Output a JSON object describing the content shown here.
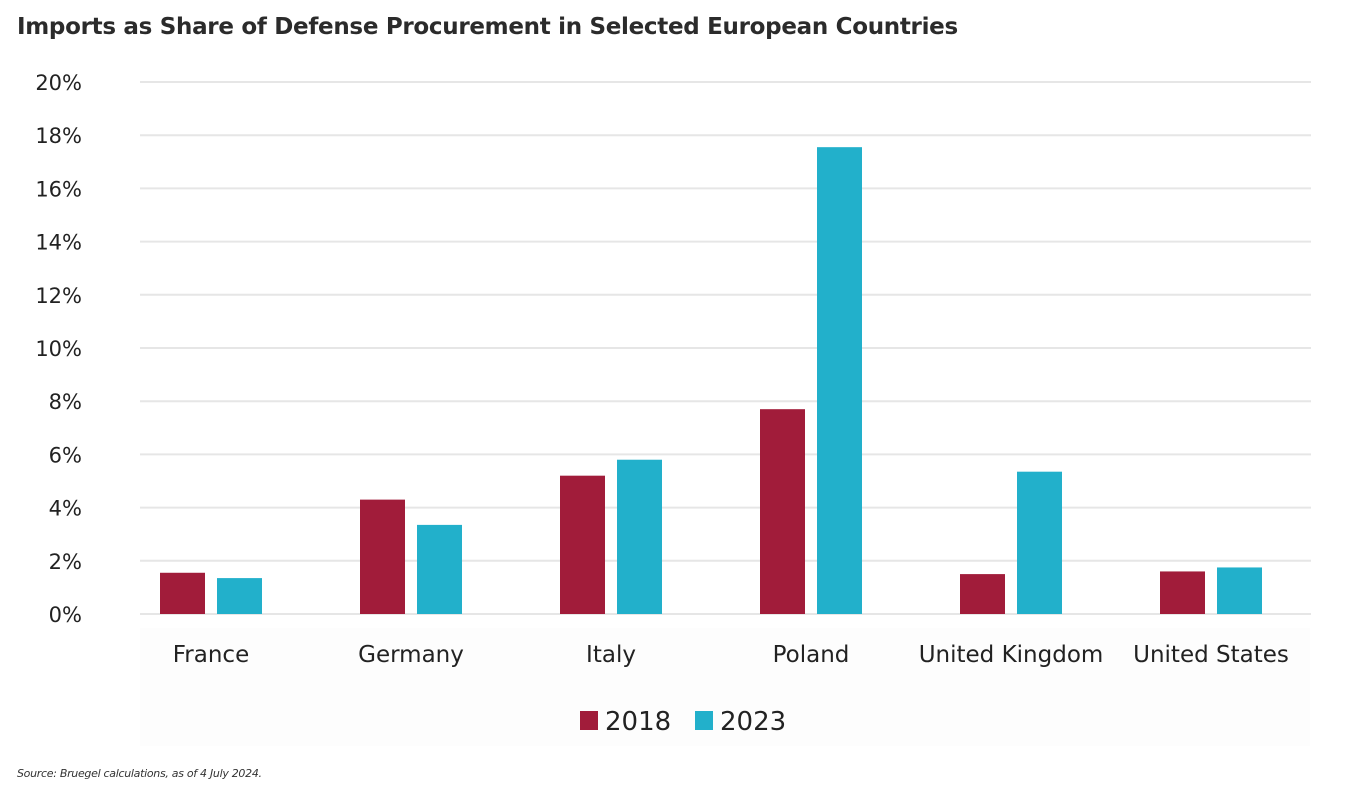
{
  "chart_data": {
    "type": "bar",
    "title": "Imports as Share of Defense Procurement in Selected European Countries",
    "xlabel": "",
    "ylabel": "",
    "categories": [
      "France",
      "Germany",
      "Italy",
      "Poland",
      "United Kingdom",
      "United States"
    ],
    "series": [
      {
        "name": "2018",
        "color": "#A11C3A",
        "values": [
          1.55,
          4.3,
          5.2,
          7.7,
          1.5,
          1.6
        ]
      },
      {
        "name": "2023",
        "color": "#22B0CB",
        "values": [
          1.35,
          3.35,
          5.8,
          17.55,
          5.35,
          1.75
        ]
      }
    ],
    "ylim": [
      0,
      20
    ],
    "yticks": [
      0,
      2,
      4,
      6,
      8,
      10,
      12,
      14,
      16,
      18,
      20
    ],
    "ytick_labels": [
      "0%",
      "2%",
      "4%",
      "6%",
      "8%",
      "10%",
      "12%",
      "14%",
      "16%",
      "18%",
      "20%"
    ],
    "grid": true,
    "legend_position": "bottom-center",
    "source": "Source: Bruegel calculations, as of 4 July 2024."
  }
}
